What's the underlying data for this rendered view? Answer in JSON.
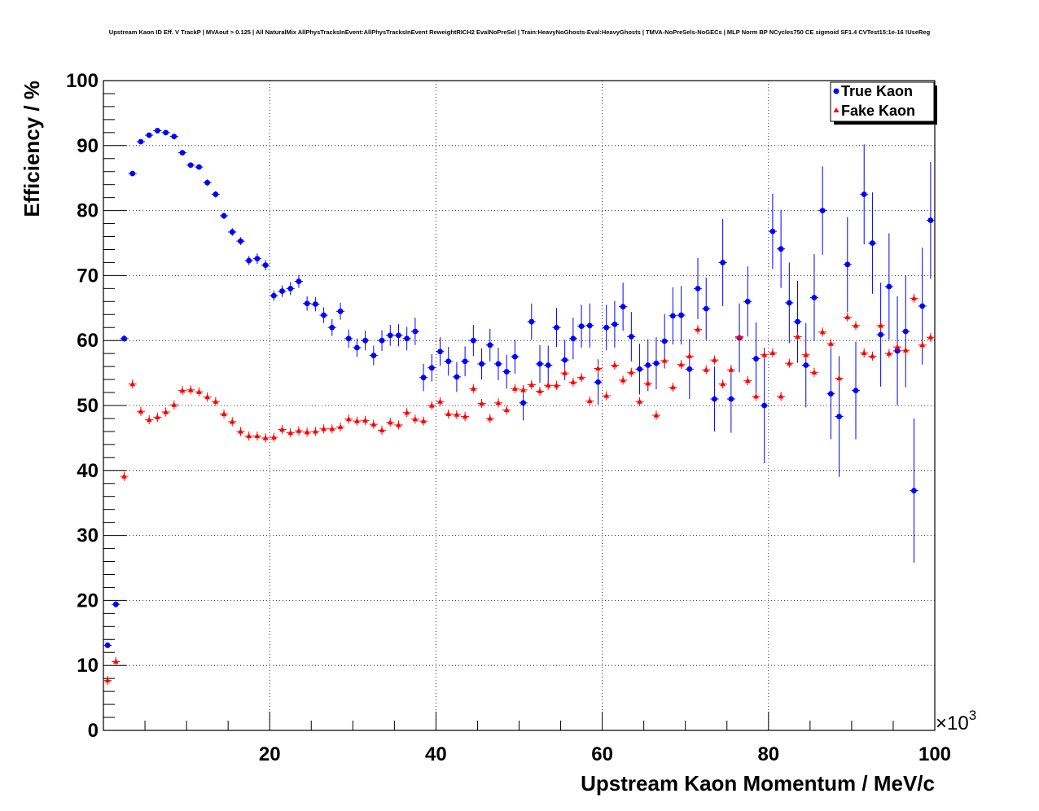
{
  "chart_data": {
    "type": "scatter",
    "title": "Upstream Kaon ID Eff. V TrackP | MVAout > 0.125 | All NaturalMix AllPhysTracksInEvent:AllPhysTracksInEvent ReweightRICH2 EvalNoPreSel | Train:HeavyNoGhosts-Eval:HeavyGhosts | TMVA-NoPreSels-NoGECs | MLP Norm BP NCycles750 CE sigmoid SF1.4 CVTest15:1e-16 !UseReg",
    "xlabel": "Upstream Kaon Momentum / MeV/c",
    "ylabel": "Efficiency / %",
    "x_multiplier": "×10",
    "x_multiplier_exp": "3",
    "xlim": [
      0,
      100
    ],
    "ylim": [
      0,
      100
    ],
    "x_ticks": [
      20,
      40,
      60,
      80,
      100
    ],
    "y_ticks": [
      0,
      10,
      20,
      30,
      40,
      50,
      60,
      70,
      80,
      90,
      100
    ],
    "grid": true,
    "legend_position": "top-right",
    "series": [
      {
        "name": "True Kaon",
        "color": "#0000ff",
        "marker": "circle",
        "x": [
          0.5,
          1.5,
          2.5,
          3.5,
          4.5,
          5.5,
          6.5,
          7.5,
          8.5,
          9.5,
          10.5,
          11.5,
          12.5,
          13.5,
          14.5,
          15.5,
          16.5,
          17.5,
          18.5,
          19.5,
          20.5,
          21.5,
          22.5,
          23.5,
          24.5,
          25.5,
          26.5,
          27.5,
          28.5,
          29.5,
          30.5,
          31.5,
          32.5,
          33.5,
          34.5,
          35.5,
          36.5,
          37.5,
          38.5,
          39.5,
          40.5,
          41.5,
          42.5,
          43.5,
          44.5,
          45.5,
          46.5,
          47.5,
          48.5,
          49.5,
          50.5,
          51.5,
          52.5,
          53.5,
          54.5,
          55.5,
          56.5,
          57.5,
          58.5,
          59.5,
          60.5,
          61.5,
          62.5,
          63.5,
          64.5,
          65.5,
          66.5,
          67.5,
          68.5,
          69.5,
          70.5,
          71.5,
          72.5,
          73.5,
          74.5,
          75.5,
          76.5,
          77.5,
          78.5,
          79.5,
          80.5,
          81.5,
          82.5,
          83.5,
          84.5,
          85.5,
          86.5,
          87.5,
          88.5,
          89.5,
          90.5,
          91.5,
          92.5,
          93.5,
          94.5,
          95.5,
          96.5,
          97.5,
          98.5,
          99.5
        ],
        "y": [
          13.1,
          19.4,
          60.3,
          85.7,
          90.6,
          91.6,
          92.3,
          92.0,
          91.4,
          88.9,
          87.0,
          86.7,
          84.3,
          82.5,
          79.2,
          76.7,
          75.3,
          72.3,
          72.6,
          71.6,
          66.9,
          67.6,
          68.0,
          69.1,
          65.7,
          65.6,
          63.9,
          62.0,
          64.5,
          60.3,
          58.9,
          60.0,
          57.7,
          60.0,
          60.8,
          60.8,
          60.3,
          61.4,
          54.3,
          55.8,
          58.3,
          56.8,
          54.4,
          56.8,
          60.0,
          56.4,
          59.3,
          56.4,
          55.2,
          57.5,
          50.4,
          62.9,
          56.4,
          56.2,
          62.0,
          57.0,
          60.3,
          62.2,
          62.3,
          53.6,
          62.0,
          62.5,
          65.2,
          60.6,
          55.6,
          56.2,
          56.5,
          59.9,
          63.8,
          63.9,
          55.6,
          68.0,
          64.9,
          51.0,
          72.0,
          51.0,
          60.4,
          66.0,
          57.2,
          50.0,
          76.8,
          74.1,
          65.8,
          62.9,
          56.2,
          66.6,
          80.0,
          51.8,
          48.3,
          71.7,
          52.3,
          82.5,
          75.0,
          60.9,
          68.3,
          58.4,
          61.4,
          36.9,
          65.3,
          78.5
        ],
        "err": [
          0.4,
          0.5,
          0.5,
          0.4,
          0.4,
          0.4,
          0.4,
          0.4,
          0.4,
          0.4,
          0.4,
          0.4,
          0.5,
          0.5,
          0.5,
          0.6,
          0.6,
          0.7,
          0.8,
          0.8,
          0.8,
          0.9,
          1.0,
          1.0,
          1.1,
          1.1,
          1.2,
          1.3,
          1.3,
          1.4,
          1.4,
          1.5,
          1.5,
          1.6,
          1.6,
          1.7,
          1.8,
          2.1,
          2.1,
          2.1,
          2.2,
          2.2,
          2.3,
          2.3,
          2.4,
          2.4,
          2.5,
          2.5,
          2.6,
          2.6,
          2.7,
          2.8,
          2.9,
          3.0,
          3.0,
          3.1,
          3.2,
          3.3,
          3.4,
          3.5,
          3.5,
          3.6,
          3.7,
          3.8,
          3.9,
          4.0,
          4.0,
          4.2,
          4.4,
          4.5,
          4.6,
          4.7,
          4.8,
          5.0,
          6.7,
          5.2,
          5.3,
          5.4,
          5.6,
          8.9,
          5.8,
          6.0,
          6.2,
          6.3,
          6.5,
          6.7,
          6.8,
          7.0,
          9.3,
          7.3,
          7.5,
          7.7,
          7.8,
          8.0,
          8.2,
          8.4,
          8.6,
          11.1,
          9.0,
          9.0
        ]
      },
      {
        "name": "Fake Kaon",
        "color": "#ff0000",
        "marker": "triangle",
        "x": [
          0.5,
          1.5,
          2.5,
          3.5,
          4.5,
          5.5,
          6.5,
          7.5,
          8.5,
          9.5,
          10.5,
          11.5,
          12.5,
          13.5,
          14.5,
          15.5,
          16.5,
          17.5,
          18.5,
          19.5,
          20.5,
          21.5,
          22.5,
          23.5,
          24.5,
          25.5,
          26.5,
          27.5,
          28.5,
          29.5,
          30.5,
          31.5,
          32.5,
          33.5,
          34.5,
          35.5,
          36.5,
          37.5,
          38.5,
          39.5,
          40.5,
          41.5,
          42.5,
          43.5,
          44.5,
          45.5,
          46.5,
          47.5,
          48.5,
          49.5,
          50.5,
          51.5,
          52.5,
          53.5,
          54.5,
          55.5,
          56.5,
          57.5,
          58.5,
          59.5,
          60.5,
          61.5,
          62.5,
          63.5,
          64.5,
          65.5,
          66.5,
          67.5,
          68.5,
          69.5,
          70.5,
          71.5,
          72.5,
          73.5,
          74.5,
          75.5,
          76.5,
          77.5,
          78.5,
          79.5,
          80.5,
          81.5,
          82.5,
          83.5,
          84.5,
          85.5,
          86.5,
          87.5,
          88.5,
          89.5,
          90.5,
          91.5,
          92.5,
          93.5,
          94.5,
          95.5,
          96.5,
          97.5,
          98.5,
          99.5
        ],
        "y": [
          7.7,
          10.6,
          39.1,
          53.3,
          49.1,
          47.8,
          48.2,
          49.0,
          50.1,
          52.3,
          52.4,
          52.1,
          51.3,
          50.6,
          48.7,
          47.5,
          46.0,
          45.3,
          45.3,
          45.0,
          45.1,
          46.3,
          45.8,
          46.1,
          45.9,
          46.0,
          46.4,
          46.4,
          46.7,
          47.9,
          47.6,
          47.7,
          47.1,
          46.2,
          47.4,
          47.0,
          48.9,
          47.9,
          47.6,
          50.0,
          50.6,
          48.7,
          48.6,
          48.3,
          52.6,
          50.3,
          48.0,
          50.4,
          49.3,
          52.6,
          52.4,
          53.2,
          52.2,
          53.1,
          53.1,
          55.0,
          53.6,
          54.3,
          50.7,
          55.7,
          51.5,
          56.2,
          53.9,
          55.1,
          50.6,
          53.4,
          48.5,
          56.9,
          52.8,
          56.3,
          57.6,
          61.7,
          55.5,
          57.0,
          53.3,
          55.5,
          60.6,
          53.8,
          51.4,
          57.8,
          58.1,
          51.4,
          56.5,
          60.6,
          57.8,
          55.1,
          61.3,
          59.5,
          54.2,
          63.6,
          62.3,
          58.1,
          57.6,
          62.3,
          58.0,
          59.0,
          58.5,
          66.5,
          59.3,
          60.5
        ]
      }
    ]
  }
}
